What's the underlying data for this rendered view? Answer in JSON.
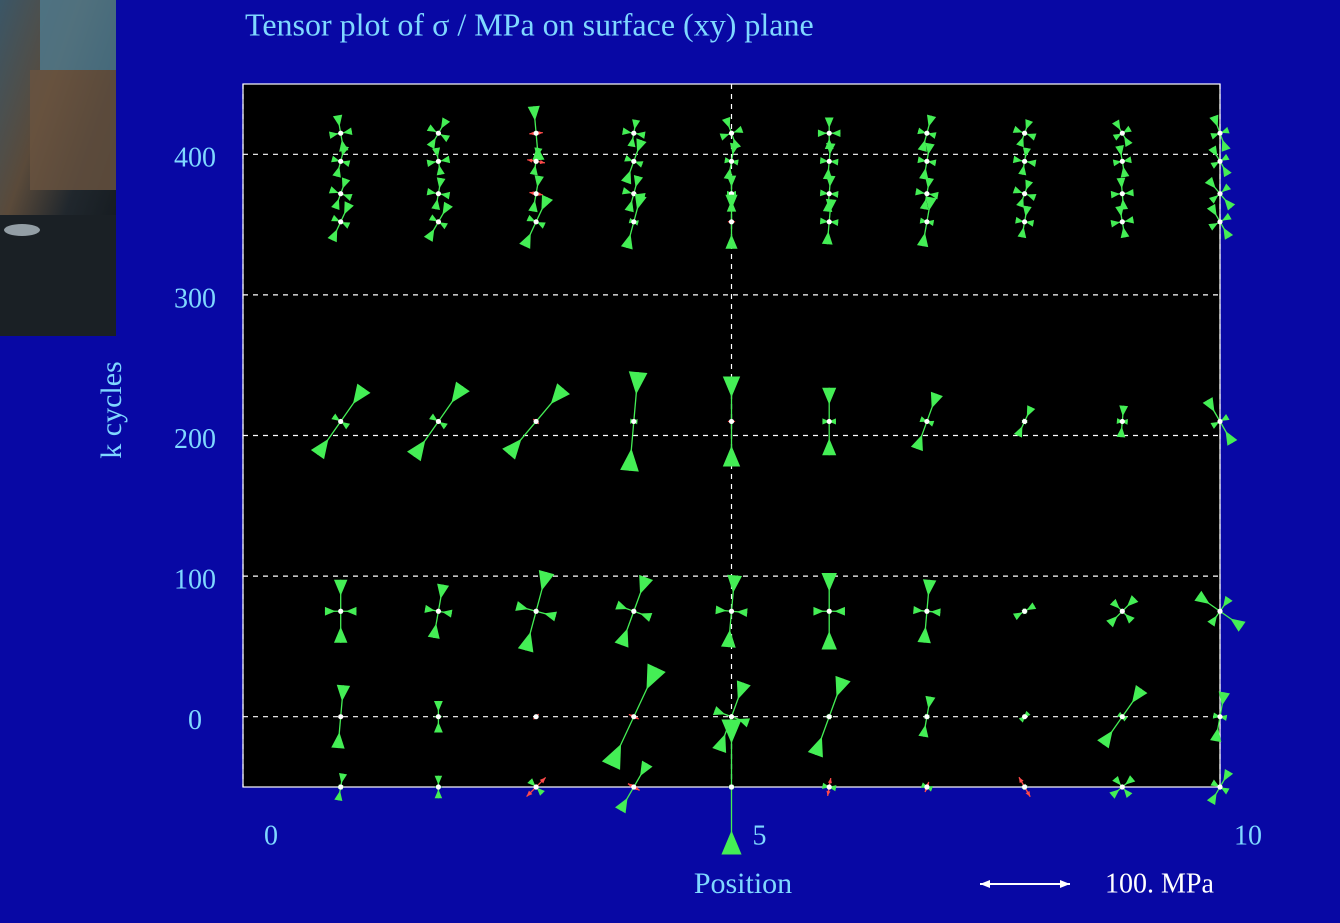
{
  "chart_data": {
    "type": "tensor",
    "title": "Tensor plot of   σ / MPa   on surface (xy) plane",
    "xlabel": "Position",
    "ylabel": "k cycles",
    "xlim": [
      0,
      10
    ],
    "xticks": [
      0,
      5,
      10
    ],
    "ylim": [
      -50,
      450
    ],
    "yticks": [
      0,
      100,
      200,
      300,
      400
    ],
    "grid": true,
    "compression_color": "#44ee55",
    "tension_color": "#ff4a4a",
    "scale_bar": {
      "value": 100,
      "label": "100. MPa"
    },
    "x": [
      1,
      2,
      3,
      4,
      5,
      6,
      7,
      8,
      9,
      10
    ],
    "rows": [
      {
        "y": 415,
        "s1": [
          -40,
          -35,
          -60,
          -30,
          -35,
          -35,
          -40,
          -30,
          -30,
          -40
        ],
        "s2": [
          -25,
          -25,
          15,
          -25,
          -25,
          -25,
          -20,
          -25,
          -20,
          -20
        ],
        "angle": [
          100,
          60,
          95,
          80,
          110,
          90,
          75,
          70,
          120,
          110
        ]
      },
      {
        "y": 395,
        "s1": [
          -35,
          -30,
          -30,
          -50,
          -40,
          -40,
          -40,
          -30,
          -35,
          -35
        ],
        "s2": [
          -20,
          -25,
          20,
          -20,
          -15,
          -20,
          -20,
          -25,
          -20,
          -20
        ],
        "angle": [
          75,
          100,
          80,
          70,
          80,
          85,
          80,
          80,
          100,
          120
        ]
      },
      {
        "y": 372,
        "s1": [
          -35,
          -35,
          -40,
          -40,
          -40,
          -40,
          -35,
          -30,
          -35,
          -40
        ],
        "s2": [
          -25,
          -25,
          15,
          -25,
          -10,
          -20,
          -25,
          -25,
          -25,
          -25
        ],
        "angle": [
          70,
          80,
          80,
          75,
          90,
          85,
          80,
          70,
          95,
          130
        ]
      },
      {
        "y": 352,
        "s1": [
          -45,
          -45,
          -60,
          -60,
          -60,
          -50,
          -55,
          -35,
          -35,
          -40
        ],
        "s2": [
          -20,
          -20,
          -20,
          -10,
          8,
          -20,
          -15,
          -20,
          -25,
          -25
        ],
        "angle": [
          65,
          60,
          65,
          75,
          90,
          85,
          80,
          80,
          100,
          120
        ]
      },
      {
        "y": 210,
        "s1": [
          -90,
          -95,
          -95,
          -110,
          -100,
          -75,
          -65,
          -35,
          -35,
          -55
        ],
        "s2": [
          -20,
          -20,
          8,
          -8,
          8,
          -15,
          -15,
          -5,
          -12,
          -20
        ],
        "angle": [
          55,
          55,
          50,
          85,
          90,
          90,
          70,
          65,
          85,
          120
        ]
      },
      {
        "y": 75,
        "s1": [
          -70,
          -60,
          -90,
          -80,
          -80,
          -85,
          -70,
          -25,
          -40,
          -60
        ],
        "s2": [
          -35,
          -30,
          -45,
          -40,
          -35,
          -35,
          -30,
          -5,
          -30,
          -35
        ],
        "angle": [
          90,
          80,
          75,
          70,
          85,
          90,
          85,
          30,
          45,
          145
        ]
      },
      {
        "y": 0,
        "s1": [
          -70,
          -35,
          8,
          -120,
          -80,
          -90,
          -45,
          -12,
          -75,
          -55
        ],
        "s2": [
          5,
          -3,
          5,
          12,
          -40,
          -5,
          -5,
          5,
          -10,
          -15
        ],
        "angle": [
          85,
          90,
          45,
          65,
          70,
          70,
          80,
          45,
          55,
          80
        ]
      },
      {
        "y": -50,
        "s1": [
          -30,
          -25,
          30,
          -60,
          -150,
          20,
          12,
          25,
          -30,
          -40
        ],
        "s2": [
          -5,
          -3,
          -20,
          15,
          -5,
          -15,
          -12,
          -5,
          -25,
          -20
        ],
        "angle": [
          80,
          90,
          45,
          60,
          90,
          80,
          70,
          120,
          40,
          60
        ]
      }
    ]
  }
}
